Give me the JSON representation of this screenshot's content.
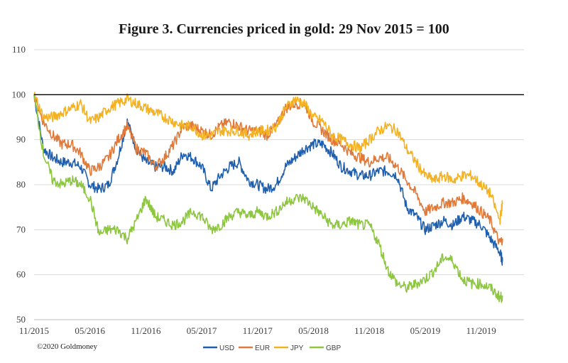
{
  "chart_data": {
    "type": "line",
    "title": "Figure 3. Currencies priced in gold: 29 Nov 2015 = 100",
    "ylim": [
      50,
      110
    ],
    "yticks": [
      50,
      60,
      70,
      80,
      90,
      100,
      110
    ],
    "xticks": [
      "11/2015",
      "05/2016",
      "11/2016",
      "05/2017",
      "11/2017",
      "05/2018",
      "11/2018",
      "05/2019",
      "11/2019"
    ],
    "grid": "horizontal",
    "reference_line": 100,
    "legend_position": "bottom",
    "copyright": "©2020 Goldmoney",
    "series": [
      {
        "name": "USD",
        "color": "#1f5fae",
        "points": [
          [
            0,
            100
          ],
          [
            1,
            88
          ],
          [
            2,
            86
          ],
          [
            3,
            85
          ],
          [
            4,
            85
          ],
          [
            5,
            84
          ],
          [
            6,
            80
          ],
          [
            7,
            79
          ],
          [
            8,
            80
          ],
          [
            9,
            86
          ],
          [
            10,
            94
          ],
          [
            11,
            88
          ],
          [
            12,
            85
          ],
          [
            13,
            84
          ],
          [
            14,
            84
          ],
          [
            15,
            83
          ],
          [
            16,
            87
          ],
          [
            17,
            86
          ],
          [
            18,
            84
          ],
          [
            19,
            79
          ],
          [
            20,
            82
          ],
          [
            21,
            84
          ],
          [
            22,
            85
          ],
          [
            23,
            81
          ],
          [
            24,
            80
          ],
          [
            25,
            79
          ],
          [
            26,
            80
          ],
          [
            27,
            84
          ],
          [
            28,
            86
          ],
          [
            29,
            88
          ],
          [
            30,
            89
          ],
          [
            31,
            89
          ],
          [
            32,
            87
          ],
          [
            33,
            84
          ],
          [
            34,
            83
          ],
          [
            35,
            82
          ],
          [
            36,
            82
          ],
          [
            37,
            83
          ],
          [
            38,
            83
          ],
          [
            39,
            82
          ],
          [
            40,
            75
          ],
          [
            41,
            73
          ],
          [
            42,
            70
          ],
          [
            43,
            71
          ],
          [
            44,
            72
          ],
          [
            45,
            71
          ],
          [
            46,
            73
          ],
          [
            47,
            72
          ],
          [
            48,
            71
          ],
          [
            49,
            68
          ],
          [
            50,
            65
          ],
          [
            50.3,
            63
          ]
        ]
      },
      {
        "name": "EUR",
        "color": "#e07a3a",
        "points": [
          [
            0,
            100
          ],
          [
            1,
            94
          ],
          [
            2,
            91
          ],
          [
            3,
            89
          ],
          [
            4,
            89
          ],
          [
            5,
            87
          ],
          [
            6,
            83
          ],
          [
            7,
            84
          ],
          [
            8,
            86
          ],
          [
            9,
            90
          ],
          [
            10,
            93
          ],
          [
            11,
            88
          ],
          [
            12,
            87
          ],
          [
            13,
            84
          ],
          [
            14,
            86
          ],
          [
            15,
            89
          ],
          [
            16,
            93
          ],
          [
            17,
            93
          ],
          [
            18,
            92
          ],
          [
            19,
            91
          ],
          [
            20,
            93
          ],
          [
            21,
            94
          ],
          [
            22,
            93
          ],
          [
            23,
            92
          ],
          [
            24,
            92
          ],
          [
            25,
            91
          ],
          [
            26,
            93
          ],
          [
            27,
            97
          ],
          [
            28,
            98
          ],
          [
            29,
            98
          ],
          [
            30,
            94
          ],
          [
            31,
            92
          ],
          [
            32,
            90
          ],
          [
            33,
            89
          ],
          [
            34,
            87
          ],
          [
            35,
            86
          ],
          [
            36,
            85
          ],
          [
            37,
            86
          ],
          [
            38,
            86
          ],
          [
            39,
            84
          ],
          [
            40,
            81
          ],
          [
            41,
            78
          ],
          [
            42,
            74
          ],
          [
            43,
            75
          ],
          [
            44,
            76
          ],
          [
            45,
            76
          ],
          [
            46,
            77
          ],
          [
            47,
            76
          ],
          [
            48,
            74
          ],
          [
            49,
            72
          ],
          [
            50,
            67
          ],
          [
            50.3,
            68
          ]
        ]
      },
      {
        "name": "JPY",
        "color": "#f4b223",
        "points": [
          [
            0,
            100
          ],
          [
            1,
            95
          ],
          [
            2,
            95
          ],
          [
            3,
            96
          ],
          [
            4,
            97
          ],
          [
            5,
            98
          ],
          [
            6,
            94
          ],
          [
            7,
            95
          ],
          [
            8,
            97
          ],
          [
            9,
            98
          ],
          [
            10,
            99
          ],
          [
            11,
            98
          ],
          [
            12,
            97
          ],
          [
            13,
            96
          ],
          [
            14,
            95
          ],
          [
            15,
            94
          ],
          [
            16,
            93
          ],
          [
            17,
            93
          ],
          [
            18,
            91
          ],
          [
            19,
            91
          ],
          [
            20,
            92
          ],
          [
            21,
            92
          ],
          [
            22,
            92
          ],
          [
            23,
            91
          ],
          [
            24,
            92
          ],
          [
            25,
            92
          ],
          [
            26,
            93
          ],
          [
            27,
            97
          ],
          [
            28,
            99
          ],
          [
            29,
            98
          ],
          [
            30,
            95
          ],
          [
            31,
            94
          ],
          [
            32,
            91
          ],
          [
            33,
            90
          ],
          [
            34,
            89
          ],
          [
            35,
            88
          ],
          [
            36,
            90
          ],
          [
            37,
            92
          ],
          [
            38,
            93
          ],
          [
            39,
            92
          ],
          [
            40,
            88
          ],
          [
            41,
            85
          ],
          [
            42,
            82
          ],
          [
            43,
            81
          ],
          [
            44,
            82
          ],
          [
            45,
            81
          ],
          [
            46,
            82
          ],
          [
            47,
            82
          ],
          [
            48,
            80
          ],
          [
            49,
            78
          ],
          [
            50,
            72
          ],
          [
            50.3,
            76
          ]
        ]
      },
      {
        "name": "GBP",
        "color": "#8dc63f",
        "points": [
          [
            0,
            100
          ],
          [
            1,
            87
          ],
          [
            2,
            81
          ],
          [
            3,
            80
          ],
          [
            4,
            81
          ],
          [
            5,
            80
          ],
          [
            6,
            77
          ],
          [
            7,
            69
          ],
          [
            8,
            70
          ],
          [
            9,
            70
          ],
          [
            10,
            68
          ],
          [
            11,
            72
          ],
          [
            12,
            77
          ],
          [
            13,
            73
          ],
          [
            14,
            72
          ],
          [
            15,
            71
          ],
          [
            16,
            72
          ],
          [
            17,
            74
          ],
          [
            18,
            73
          ],
          [
            19,
            70
          ],
          [
            20,
            71
          ],
          [
            21,
            73
          ],
          [
            22,
            74
          ],
          [
            23,
            73
          ],
          [
            24,
            74
          ],
          [
            25,
            73
          ],
          [
            26,
            74
          ],
          [
            27,
            76
          ],
          [
            28,
            77
          ],
          [
            29,
            77
          ],
          [
            30,
            75
          ],
          [
            31,
            73
          ],
          [
            32,
            71
          ],
          [
            33,
            71
          ],
          [
            34,
            72
          ],
          [
            35,
            71
          ],
          [
            36,
            71
          ],
          [
            37,
            67
          ],
          [
            38,
            61
          ],
          [
            39,
            58
          ],
          [
            40,
            57
          ],
          [
            41,
            58
          ],
          [
            42,
            59
          ],
          [
            43,
            61
          ],
          [
            44,
            64
          ],
          [
            45,
            63
          ],
          [
            46,
            59
          ],
          [
            47,
            58
          ],
          [
            48,
            58
          ],
          [
            49,
            57
          ],
          [
            50,
            55
          ],
          [
            50.3,
            55
          ]
        ]
      }
    ]
  }
}
